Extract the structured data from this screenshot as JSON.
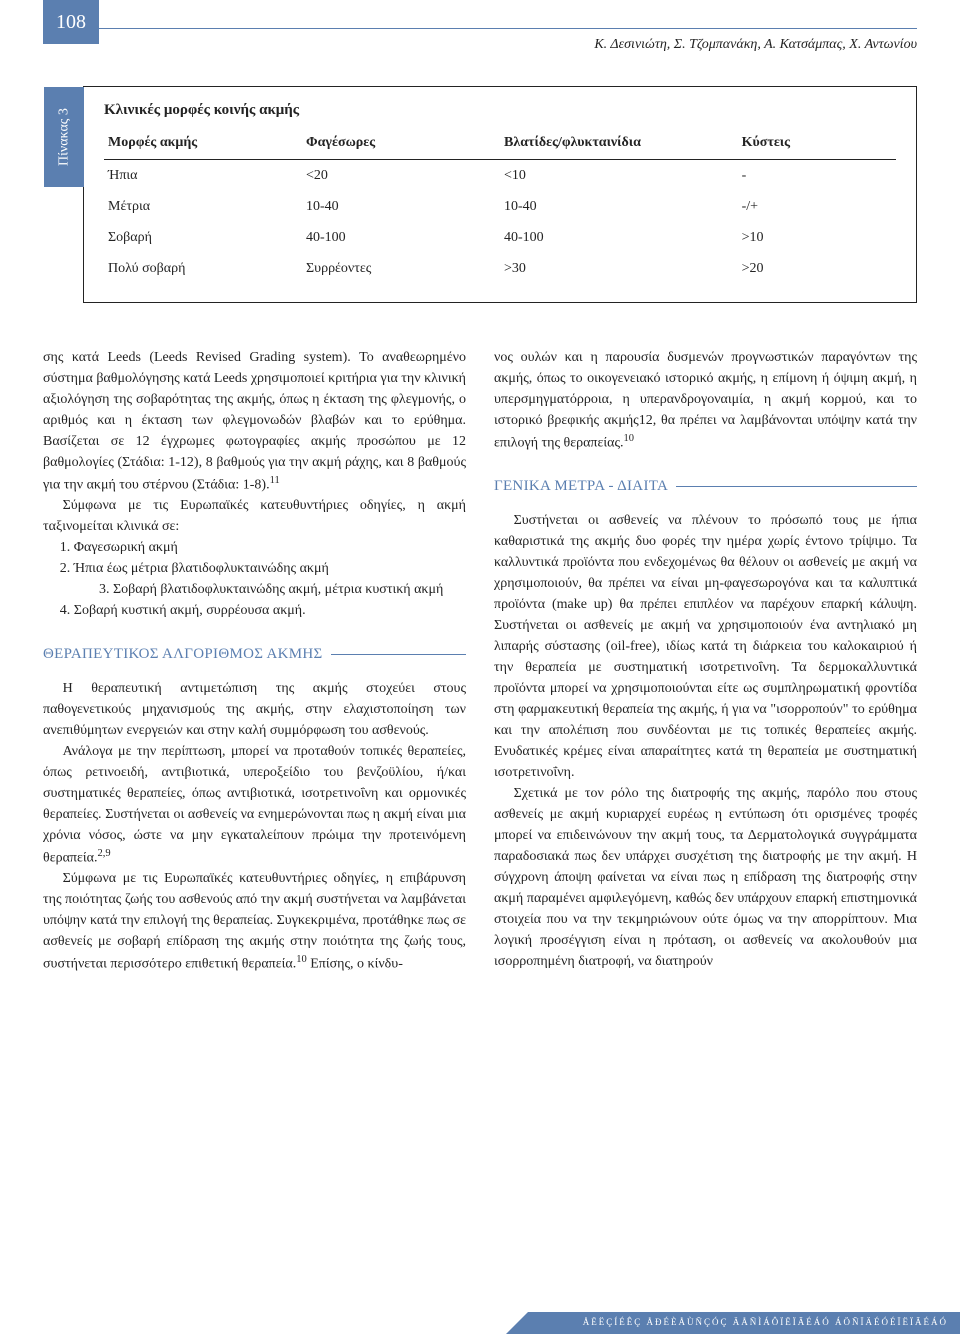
{
  "page_number": "108",
  "header_authors": "Κ. Δεσινιώτη, Σ. Τζομπανάκη, Α. Κατσάμπας, Χ. Αντωνίου",
  "table3": {
    "tab_label": "Πίνακας 3",
    "title": "Κλινικές μορφές κοινής ακμής",
    "headers": [
      "Μορφές ακμής",
      "Φαγέσωρες",
      "Βλατίδες/φλυκταινίδια",
      "Κύστεις"
    ],
    "rows": [
      [
        "Ήπια",
        "<20",
        "<10",
        "-"
      ],
      [
        "Μέτρια",
        "10-40",
        "10-40",
        "-/+"
      ],
      [
        "Σοβαρή",
        "40-100",
        "40-100",
        ">10"
      ],
      [
        "Πολύ σοβαρή",
        "Συρρέοντες",
        ">30",
        ">20"
      ]
    ]
  },
  "left_col": {
    "p1": "σης κατά Leeds (Leeds Revised Grading system). Το αναθεωρημένο σύστημα βαθμολόγησης κατά Leeds χρησιμοποιεί κριτήρια για την κλινική αξιολόγηση της σοβαρότητας της ακμής, όπως η έκταση της φλεγ­μονής, ο αριθμός και η έκταση των φλεγμονωδών βλαβών και το ερύθημα. Βασίζεται σε 12 έγχρωμες φωτογραφίες ακμής προσώπου με 12 βαθμολογίες (Στάδια: 1-12), 8 βαθμούς για την ακμή ράχης, και 8 βαθμούς για την ακμή του στέρνου (Στάδια: 1-8).",
    "p1_sup": "11",
    "p2": "Σύμφωνα με τις Ευρωπαϊκές κατευθυντήριες οδη­γίες, η ακμή ταξινομείται κλινικά σε:",
    "li1": "1. Φαγεσωρική ακμή",
    "li2": "2. Ήπια έως μέτρια βλατιδοφλυκταινώδης ακμή",
    "li3": "3. Σοβαρή βλατιδοφλυκταινώδης ακμή, μέτρια κυ­στική ακμή",
    "li4": "4. Σοβαρή κυστική ακμή, συρρέουσα ακμή.",
    "heading1": "ΘΕΡΑΠΕΥΤΙΚΟΣ ΑΛΓΟΡΙΘΜΟΣ ΑΚΜΗΣ",
    "p3": "Η θεραπευτική αντιμετώπιση της ακμής στοχεύει στους παθογενετικούς μηχανισμούς της ακμής, στην ελαχιστοποίηση των ανεπιθύμητων ενεργειών και στην καλή συμμόρφωση του ασθενούς.",
    "p4a": "Ανάλογα με την περίπτωση, μπορεί να προτα­θούν τοπικές θεραπείες, όπως ρετινοειδή, αντιβιοτι­κά, υπεροξείδιο του βενζοϋλίου, ή/και συστηματι­κές θεραπείες, όπως αντιβιοτικά, ισοτρετινοΐνη και ορμονικές θεραπείες. Συστήνεται οι ασθενείς να ενημερώνονται πως η ακμή είναι μια χρόνια νόσος, ώστε να μην εγκαταλείπουν πρώιμα την προτεινόμε­νη θεραπεία.",
    "p4_sup": "2,9",
    "p5a": "Σύμφωνα με τις Ευρωπαϊκές κατευθυντήριες οδη­γίες, η επιβάρυνση της ποιότητας ζωής του ασθε­νούς από την ακμή συστήνεται να λαμβάνεται υπό­ψην κατά την επιλογή της θεραπείας. Συγκεκριμένα, προτάθηκε πως σε ασθενείς με σοβαρή επίδραση της ακμής στην ποιότητα της ζωής τους, συστήνεται περισσότερο επιθετική θεραπεία.",
    "p5_sup": "10",
    "p5b": " Επίσης, ο κίνδυ-"
  },
  "right_col": {
    "p1a": "νος ουλών και η παρουσία δυσμενών προγνωστικών παραγόντων της ακμής, όπως το οικογενειακό ιστορι­κό ακμής, η επίμονη ή όψιμη ακμή, η υπερσμηγμα­τόρροια, η υπερανδρογοναιμία, η ακμή κορμού, και το ιστορικό βρεφικής ακμής12, θα πρέπει να λαμβά­νονται υπόψην κατά την επιλογή της θεραπείας.",
    "p1_sup": "10",
    "heading2": "ΓΕΝΙΚΑ ΜΕΤΡΑ - ΔΙΑΙΤΑ",
    "p2": "Συστήνεται οι ασθενείς να πλένουν το πρόσωπό τους με ήπια καθαριστικά της ακμής δυο φορές την ημέρα χωρίς έντονο τρίψιμο. Τα καλλυντικά προ­ϊόντα που ενδεχομένως θα θέλουν οι ασθενείς με ακμή να χρησιμοποιούν, θα πρέπει να είναι μη-φα­γεσωρογόνα και τα καλυπτικά προϊόντα (make up) θα πρέπει επιπλέον να παρέχουν επαρκή κάλυψη. Συστήνεται οι ασθενείς με ακμή να χρησιμοποιούν ένα αντηλιακό μη λιπαρής σύστασης (oil-free), ιδίως κατά τη διάρκεια του καλοκαιριού ή την θε­ραπεία με συστηματική ισοτρετινοΐνη. Τα δερμο­καλλυντικά προϊόντα μπορεί να χρησιμοποιούνται είτε ως συμπληρωματική φροντίδα στη φαρμακευτι­κή θεραπεία της ακμής, ή για να \"ισορροπούν\" το ερύθημα και την απολέπιση που συνδέονται με τις τοπικές θεραπείες ακμής. Ενυδατικές κρέμες είναι απαραίτητες κατά τη θεραπεία με συστηματική ισο­τρετινοΐνη.",
    "p3": "Σχετικά με τον ρόλο της διατροφής της ακμής, παρόλο που στους ασθενείς με ακμή κυριαρχεί ευ­ρέως η εντύπωση ότι ορισμένες τροφές μπορεί να επιδεινώνουν την ακμή τους, τα Δερματολογικά συγ­γράμματα παραδοσιακά πως δεν υπάρχει συσχέτιση της διατροφής με την ακμή. Η σύγχρονη άποψη φαί­νεται να είναι πως η επίδραση της διατροφής στην ακμή παραμένει αμφιλεγόμενη, καθώς δεν υπάρ­χουν επαρκή επιστημονικά στοιχεία που να την τεκ­μηριώνουν ούτε όμως να την απορρίπτουν. Μια λογι­κή προσέγγιση είναι η πρόταση, οι ασθενείς να ακο­λουθούν μια ισορροπημένη διατροφή, να διατηρούν"
  },
  "footer": "ÅËËÇÍÉÊÇ ÅÐÉÈÅÙÑÇÓÇ ÄÅÑÌÁÔÏËÏÃÉÁÓ ÁÖÑÏÄÉÓÉÏËÏÃÉÁÓ",
  "colors": {
    "accent": "#5b7fb0",
    "text": "#232323",
    "bg": "#ffffff"
  }
}
